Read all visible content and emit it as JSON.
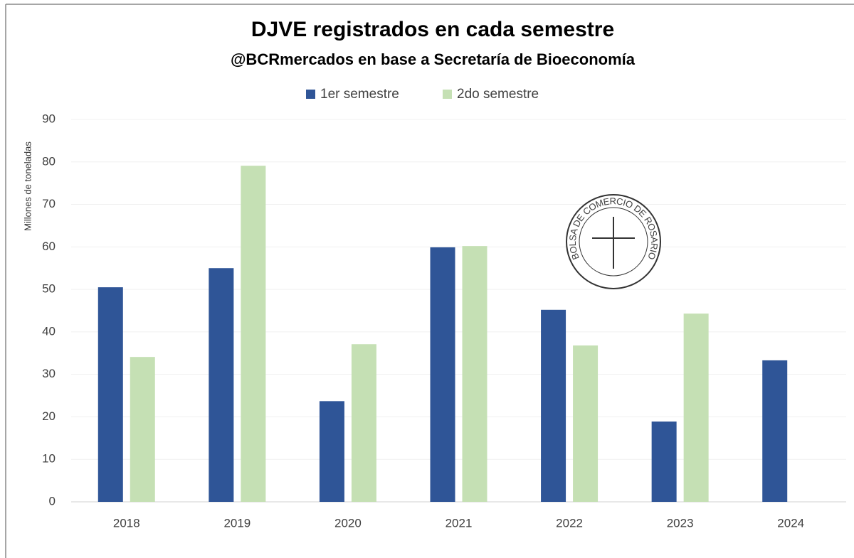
{
  "chart_data": {
    "type": "bar",
    "title": "DJVE registrados en cada semestre",
    "subtitle": "@BCRmercados en base a Secretaría de Bioeconomía",
    "y_label": "Millones de toneladas",
    "logo_text": "BOLSA DE COMERCIO DE ROSARIO",
    "categories": [
      "2018",
      "2019",
      "2020",
      "2021",
      "2022",
      "2023",
      "2024"
    ],
    "series": [
      {
        "name": "1er semestre",
        "color": "#2f5597",
        "values": [
          50.5,
          55.0,
          23.7,
          59.9,
          45.2,
          18.9,
          33.3
        ]
      },
      {
        "name": "2do semestre",
        "color": "#c5e0b4",
        "values": [
          34.1,
          79.1,
          37.1,
          60.2,
          36.8,
          44.3,
          null
        ]
      }
    ],
    "ylim": [
      0,
      90
    ],
    "yticks": [
      0,
      10,
      20,
      30,
      40,
      50,
      60,
      70,
      80,
      90
    ],
    "grid": true,
    "legend": "top"
  }
}
